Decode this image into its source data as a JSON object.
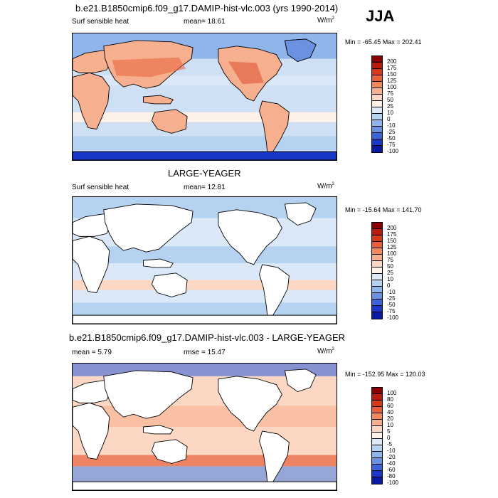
{
  "season": "JJA",
  "panels": [
    {
      "title": "b.e21.B1850cmip6.f09_g17.DAMIP-hist-vlc.003 (yrs 1990-2014)",
      "left_label": "Surf sensible heat",
      "stat_label": "mean=  18.61",
      "units": "W/m",
      "units_sup": "2",
      "minmax": "Min = -65.45 Max = 202.41",
      "colorbar": {
        "labels": [
          "200",
          "175",
          "150",
          "125",
          "100",
          "75",
          "50",
          "25",
          "10",
          "0",
          "-10",
          "-25",
          "-50",
          "-75",
          "-100"
        ],
        "colors": [
          "#8b0000",
          "#b61b0d",
          "#d43a1a",
          "#e8603a",
          "#f08a5c",
          "#f7b08f",
          "#fcd8c4",
          "#fdf1e8",
          "#dbe8f8",
          "#b5d2f1",
          "#8fb5ea",
          "#6a92e0",
          "#3c64d8",
          "#1a38c8",
          "#0a1aa0"
        ]
      }
    },
    {
      "title": "LARGE-YEAGER",
      "left_label": "Surf sensible heat",
      "stat_label": "mean=  12.81",
      "units": "W/m",
      "units_sup": "2",
      "minmax": "Min = -15.64 Max = 141.70",
      "colorbar": {
        "labels": [
          "200",
          "175",
          "150",
          "125",
          "100",
          "75",
          "50",
          "25",
          "10",
          "0",
          "-10",
          "-25",
          "-50",
          "-75",
          "-100"
        ],
        "colors": [
          "#8b0000",
          "#b61b0d",
          "#d43a1a",
          "#e8603a",
          "#f08a5c",
          "#f7b08f",
          "#fcd8c4",
          "#fdf1e8",
          "#dbe8f8",
          "#b5d2f1",
          "#8fb5ea",
          "#6a92e0",
          "#3c64d8",
          "#1a38c8",
          "#0a1aa0"
        ]
      }
    },
    {
      "title": "b.e21.B1850cmip6.f09_g17.DAMIP-hist-vlc.003 - LARGE-YEAGER",
      "left_label": "mean =  5.79",
      "stat_label": "rmse =  15.47",
      "units": "W/m",
      "units_sup": "2",
      "minmax": "Min = -152.95 Max = 120.03",
      "colorbar": {
        "labels": [
          "100",
          "80",
          "60",
          "40",
          "20",
          "10",
          "5",
          "0",
          "-5",
          "-10",
          "-20",
          "-40",
          "-60",
          "-80",
          "-100"
        ],
        "colors": [
          "#8b0000",
          "#b61b0d",
          "#d43a1a",
          "#e8603a",
          "#f08a5c",
          "#f7b08f",
          "#fcd8c4",
          "#fdf1e8",
          "#dbe8f8",
          "#b5d2f1",
          "#8fb5ea",
          "#6a92e0",
          "#3c64d8",
          "#1a38c8",
          "#0a1aa0"
        ]
      }
    }
  ]
}
